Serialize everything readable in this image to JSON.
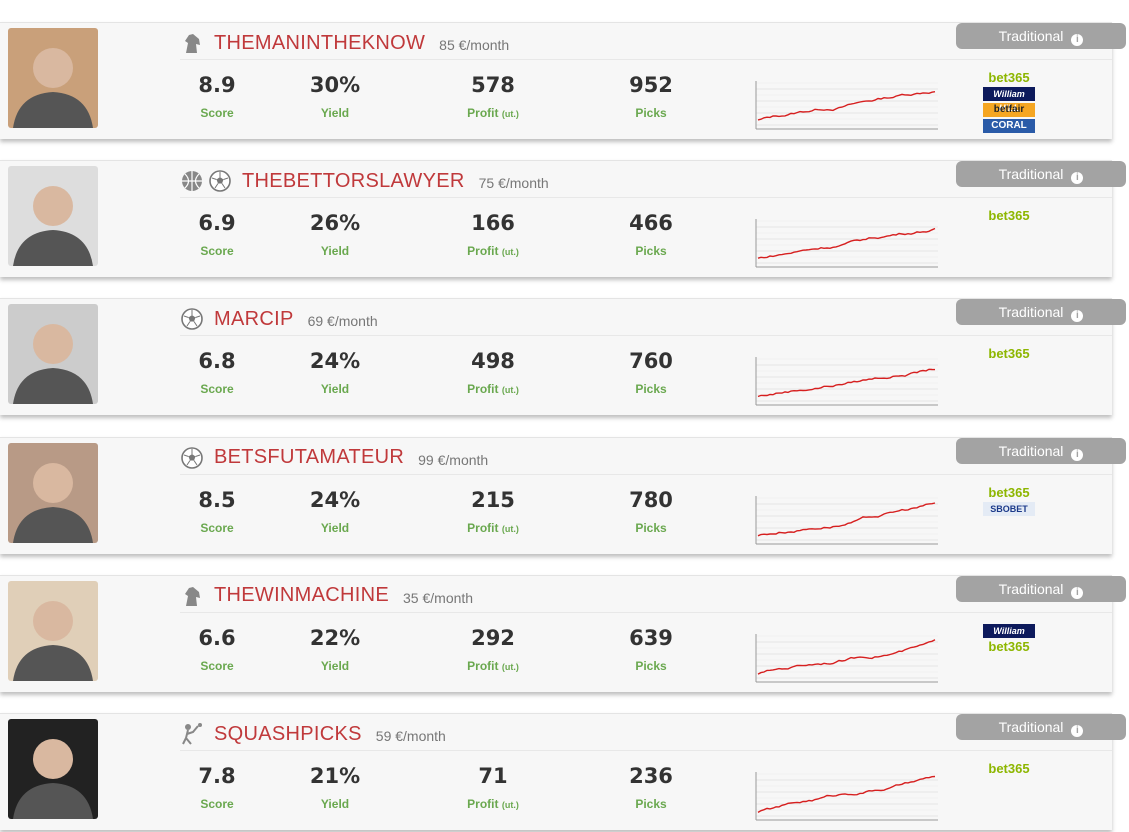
{
  "labels": {
    "score": "Score",
    "yield": "Yield",
    "profit": "Profit",
    "unit": "(ut.)",
    "picks": "Picks",
    "badge": "Traditional"
  },
  "tipsters": [
    {
      "name": "THEMANINTHEKNOW",
      "price": "85 €/month",
      "score": "8.9",
      "yield": "30%",
      "profit": "578",
      "picks": "952",
      "bookmakers": [
        "bet365",
        "William HILL",
        "betfair",
        "CORAL"
      ]
    },
    {
      "name": "THEBETTORSLAWYER",
      "price": "75 €/month",
      "score": "6.9",
      "yield": "26%",
      "profit": "166",
      "picks": "466",
      "bookmakers": [
        "bet365"
      ]
    },
    {
      "name": "MARCIP",
      "price": "69 €/month",
      "score": "6.8",
      "yield": "24%",
      "profit": "498",
      "picks": "760",
      "bookmakers": [
        "bet365"
      ]
    },
    {
      "name": "BETSFUTAMATEUR",
      "price": "99 €/month",
      "score": "8.5",
      "yield": "24%",
      "profit": "215",
      "picks": "780",
      "bookmakers": [
        "bet365",
        "SBOBET"
      ]
    },
    {
      "name": "THEWINMACHINE",
      "price": "35 €/month",
      "score": "6.6",
      "yield": "22%",
      "profit": "292",
      "picks": "639",
      "bookmakers": [
        "William HILL",
        "bet365"
      ]
    },
    {
      "name": "SQUASHPICKS",
      "price": "59 €/month",
      "score": "7.8",
      "yield": "21%",
      "profit": "71",
      "picks": "236",
      "bookmakers": [
        "bet365"
      ]
    }
  ]
}
